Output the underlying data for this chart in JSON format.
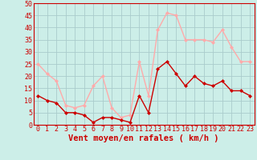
{
  "hours": [
    0,
    1,
    2,
    3,
    4,
    5,
    6,
    7,
    8,
    9,
    10,
    11,
    12,
    13,
    14,
    15,
    16,
    17,
    18,
    19,
    20,
    21,
    22,
    23
  ],
  "vent_moyen": [
    12,
    10,
    9,
    5,
    5,
    4,
    1,
    3,
    3,
    2,
    1,
    12,
    5,
    23,
    26,
    21,
    16,
    20,
    17,
    16,
    18,
    14,
    14,
    12
  ],
  "rafales": [
    25,
    21,
    18,
    8,
    7,
    8,
    16,
    20,
    7,
    3,
    4,
    26,
    12,
    39,
    46,
    45,
    35,
    35,
    35,
    34,
    39,
    32,
    26,
    26
  ],
  "xlabel": "Vent moyen/en rafales ( km/h )",
  "ylim": [
    0,
    50
  ],
  "yticks": [
    0,
    5,
    10,
    15,
    20,
    25,
    30,
    35,
    40,
    45,
    50
  ],
  "color_moyen": "#cc0000",
  "color_rafales": "#ffaaaa",
  "bg_color": "#cceee8",
  "grid_color": "#aacccc",
  "tick_fontsize": 6,
  "label_fontsize": 7.5
}
